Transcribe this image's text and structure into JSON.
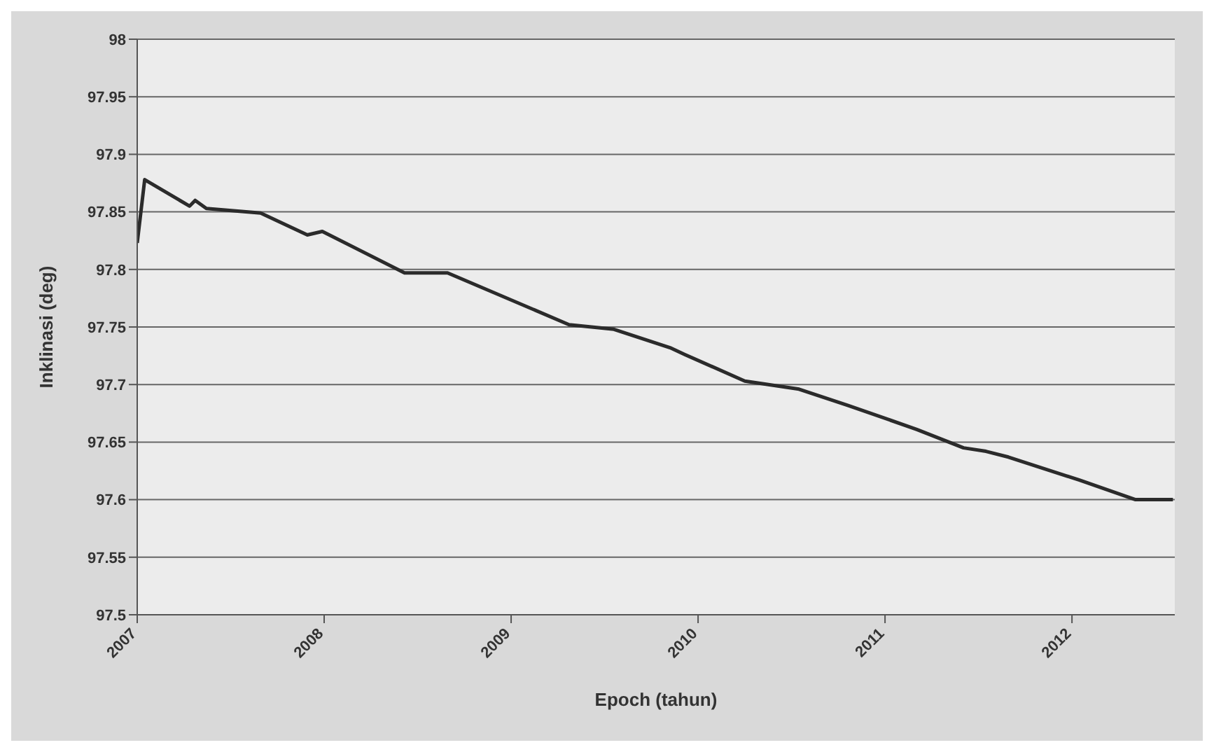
{
  "chart_data": {
    "type": "line",
    "xlabel": "Epoch (tahun)",
    "ylabel": "Inklinasi (deg)",
    "xlim": [
      2007,
      2012.55
    ],
    "xticks": [
      2007,
      2008,
      2009,
      2010,
      2011,
      2012
    ],
    "ylim": [
      97.5,
      98
    ],
    "yticks": [
      97.5,
      97.55,
      97.6,
      97.65,
      97.7,
      97.75,
      97.8,
      97.85,
      97.9,
      97.95,
      98
    ],
    "grid": "y",
    "legend": false,
    "marker": "none",
    "line_style": "solid",
    "series": [
      {
        "color": "#2b2b2b",
        "x": [
          2007.0,
          2007.04,
          2007.28,
          2007.31,
          2007.37,
          2007.66,
          2007.91,
          2007.99,
          2008.43,
          2008.66,
          2009.31,
          2009.43,
          2009.55,
          2009.85,
          2009.93,
          2010.25,
          2010.54,
          2010.8,
          2011.17,
          2011.42,
          2011.54,
          2011.66,
          2012.04,
          2012.34,
          2012.54
        ],
        "values": [
          97.823,
          97.878,
          97.855,
          97.86,
          97.853,
          97.849,
          97.83,
          97.833,
          97.797,
          97.797,
          97.752,
          97.75,
          97.748,
          97.732,
          97.726,
          97.703,
          97.696,
          97.682,
          97.661,
          97.645,
          97.642,
          97.637,
          97.617,
          97.6,
          97.6
        ]
      }
    ]
  }
}
